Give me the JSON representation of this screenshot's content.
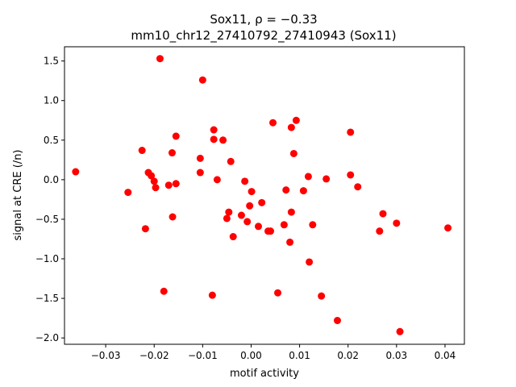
{
  "chart_data": {
    "type": "scatter",
    "title_line1": "Sox11, ρ = −0.33",
    "title_line2": "mm10_chr12_27410792_27410943 (Sox11)",
    "xlabel": "motif activity",
    "ylabel": "signal at CRE (/n)",
    "xlim": [
      -0.0385,
      0.044
    ],
    "ylim": [
      -2.08,
      1.68
    ],
    "xticks": [
      -0.03,
      -0.02,
      -0.01,
      0.0,
      0.01,
      0.02,
      0.03,
      0.04
    ],
    "xtick_labels": [
      "−0.03",
      "−0.02",
      "−0.01",
      "0.00",
      "0.01",
      "0.02",
      "0.03",
      "0.04"
    ],
    "yticks": [
      -2.0,
      -1.5,
      -1.0,
      -0.5,
      0.0,
      0.5,
      1.0,
      1.5
    ],
    "ytick_labels": [
      "−2.0",
      "−1.5",
      "−1.0",
      "−0.5",
      "0.0",
      "0.5",
      "1.0",
      "1.5"
    ],
    "grid": false,
    "marker_color": "#ff0000",
    "points": [
      {
        "x": -0.0362,
        "y": 0.1
      },
      {
        "x": -0.0254,
        "y": -0.16
      },
      {
        "x": -0.0225,
        "y": 0.37
      },
      {
        "x": -0.0218,
        "y": -0.62
      },
      {
        "x": -0.0212,
        "y": 0.09
      },
      {
        "x": -0.0206,
        "y": 0.05
      },
      {
        "x": -0.02,
        "y": -0.02
      },
      {
        "x": -0.0197,
        "y": -0.1
      },
      {
        "x": -0.0188,
        "y": 1.53
      },
      {
        "x": -0.018,
        "y": -1.41
      },
      {
        "x": -0.017,
        "y": -0.07
      },
      {
        "x": -0.0163,
        "y": 0.34
      },
      {
        "x": -0.0162,
        "y": -0.47
      },
      {
        "x": -0.0155,
        "y": 0.55
      },
      {
        "x": -0.0155,
        "y": -0.05
      },
      {
        "x": -0.0105,
        "y": 0.27
      },
      {
        "x": -0.0105,
        "y": 0.09
      },
      {
        "x": -0.01,
        "y": 1.26
      },
      {
        "x": -0.008,
        "y": -1.46
      },
      {
        "x": -0.0077,
        "y": 0.63
      },
      {
        "x": -0.0077,
        "y": 0.51
      },
      {
        "x": -0.007,
        "y": 0.0
      },
      {
        "x": -0.0058,
        "y": 0.5
      },
      {
        "x": -0.005,
        "y": -0.49
      },
      {
        "x": -0.0046,
        "y": -0.41
      },
      {
        "x": -0.0042,
        "y": 0.23
      },
      {
        "x": -0.0037,
        "y": -0.72
      },
      {
        "x": -0.002,
        "y": -0.45
      },
      {
        "x": -0.0013,
        "y": -0.02
      },
      {
        "x": -0.0008,
        "y": -0.53
      },
      {
        "x": -0.0003,
        "y": -0.33
      },
      {
        "x": 0.0001,
        "y": -0.15
      },
      {
        "x": 0.0015,
        "y": -0.59
      },
      {
        "x": 0.0022,
        "y": -0.29
      },
      {
        "x": 0.0035,
        "y": -0.65
      },
      {
        "x": 0.004,
        "y": -0.65
      },
      {
        "x": 0.0045,
        "y": 0.72
      },
      {
        "x": 0.0055,
        "y": -1.43
      },
      {
        "x": 0.0068,
        "y": -0.57
      },
      {
        "x": 0.0072,
        "y": -0.13
      },
      {
        "x": 0.008,
        "y": -0.79
      },
      {
        "x": 0.0083,
        "y": -0.41
      },
      {
        "x": 0.0083,
        "y": 0.66
      },
      {
        "x": 0.0088,
        "y": 0.33
      },
      {
        "x": 0.0093,
        "y": 0.75
      },
      {
        "x": 0.0108,
        "y": -0.14
      },
      {
        "x": 0.0118,
        "y": 0.04
      },
      {
        "x": 0.012,
        "y": -1.04
      },
      {
        "x": 0.0127,
        "y": -0.57
      },
      {
        "x": 0.0145,
        "y": -1.47
      },
      {
        "x": 0.0155,
        "y": 0.01
      },
      {
        "x": 0.0178,
        "y": -1.78
      },
      {
        "x": 0.0205,
        "y": 0.6
      },
      {
        "x": 0.0205,
        "y": 0.06
      },
      {
        "x": 0.022,
        "y": -0.09
      },
      {
        "x": 0.0265,
        "y": -0.65
      },
      {
        "x": 0.0272,
        "y": -0.43
      },
      {
        "x": 0.03,
        "y": -0.55
      },
      {
        "x": 0.0307,
        "y": -1.92
      },
      {
        "x": 0.0406,
        "y": -0.61
      }
    ]
  }
}
